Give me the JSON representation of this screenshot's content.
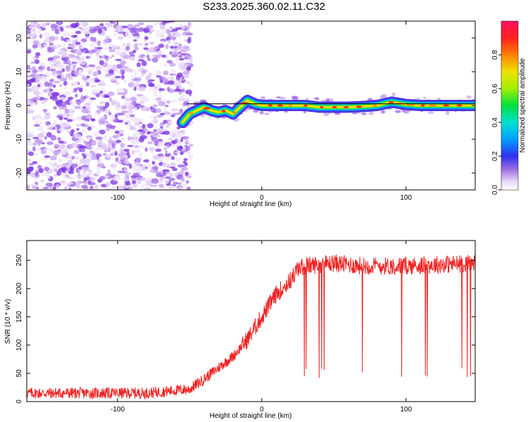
{
  "title": "S233.2025.360.02.11.C32",
  "chart_data": [
    {
      "type": "heatmap",
      "name": "spectrogram",
      "xlabel": "Height of straight line (km)",
      "ylabel": "Frequency (Hz)",
      "xlim": [
        -163,
        148
      ],
      "ylim": [
        -25,
        25
      ],
      "xticks": [
        -100,
        0,
        100
      ],
      "yticks": [
        -20,
        -10,
        0,
        10,
        20
      ],
      "colorbar": {
        "label": "Normalized spectral amplitude",
        "range": [
          0,
          1
        ],
        "ticks": [
          0.0,
          0.2,
          0.4,
          0.6,
          0.8
        ],
        "tick_labels": [
          "0.0",
          "0.2",
          "0.4",
          "0.6",
          "0.8"
        ]
      },
      "noise_region_x": [
        -163,
        -52
      ],
      "signal_track": {
        "x": [
          -55,
          -50,
          -45,
          -40,
          -35,
          -30,
          -25,
          -20,
          -15,
          -10,
          -5,
          0,
          10,
          20,
          30,
          40,
          50,
          60,
          70,
          80,
          90,
          100,
          110,
          120,
          130,
          140,
          148
        ],
        "y": [
          -5,
          -2.5,
          -1.5,
          -0.5,
          -1.5,
          -2,
          -1.5,
          -2.5,
          -0.5,
          1.5,
          0.5,
          0,
          0,
          0,
          0,
          -0.5,
          -0.5,
          -0.5,
          -0.3,
          0,
          1,
          0.3,
          0,
          0,
          0,
          0,
          0
        ]
      },
      "fit_line": {
        "x": [
          -52,
          148
        ],
        "y": [
          0.5,
          0.5
        ]
      }
    },
    {
      "type": "line",
      "name": "snr",
      "xlabel": "Height of straight line (km)",
      "ylabel": "SNR (10 * v/v)",
      "xlim": [
        -163,
        148
      ],
      "ylim": [
        0,
        285
      ],
      "xticks": [
        -100,
        0,
        100
      ],
      "yticks": [
        0,
        50,
        100,
        150,
        200,
        250
      ],
      "color": "#ee2222",
      "series": [
        {
          "name": "SNR",
          "x_key": [
            -163,
            -120,
            -80,
            -50,
            -40,
            -30,
            -20,
            -10,
            0,
            10,
            20,
            25,
            30,
            50,
            70,
            100,
            148
          ],
          "y_key": [
            15,
            15,
            15,
            22,
            40,
            60,
            80,
            110,
            150,
            190,
            215,
            235,
            240,
            245,
            240,
            240,
            245
          ],
          "noise_amplitude": 10,
          "dropouts_to": 40
        }
      ]
    }
  ]
}
